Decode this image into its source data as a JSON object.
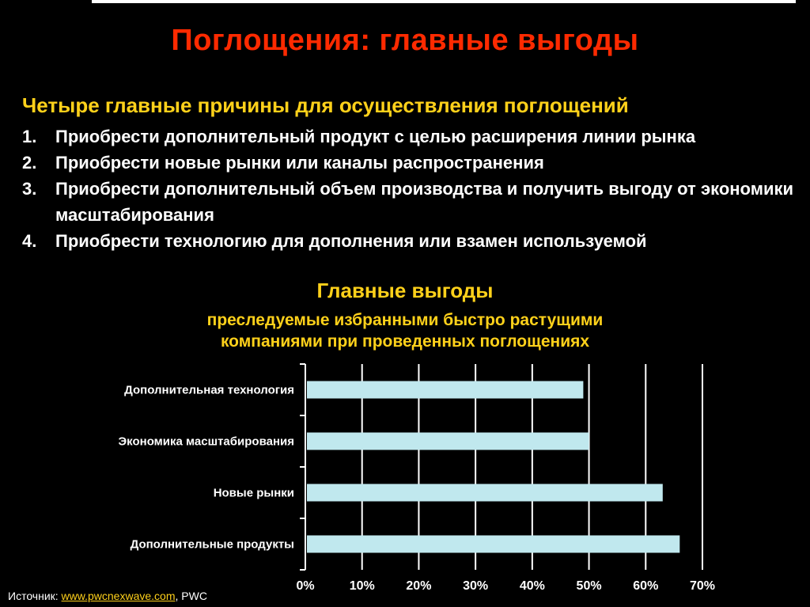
{
  "slide": {
    "title": "Поглощения: главные выгоды",
    "reasons_heading": "Четыре главные причины для осуществления поглощений",
    "reasons": [
      {
        "num": "1.",
        "text": "Приобрести дополнительный продукт с целью расширения линии рынка"
      },
      {
        "num": "2.",
        "text": "Приобрести новые рынки или каналы распространения"
      },
      {
        "num": "3.",
        "text": "Приобрести дополнительный объем производства и получить выгоду от экономики масштабирования"
      },
      {
        "num": "4.",
        "text": "Приобрести технологию для дополнения или взамен используемой"
      }
    ]
  },
  "chart_data": {
    "type": "bar",
    "orientation": "horizontal",
    "title": "Главные выгоды",
    "subtitle": "преследуемые избранными быстро растущими компаниями при проведенных поглощениях",
    "categories": [
      "Дополнительная технология",
      "Экономика масштабирования",
      "Новые рынки",
      "Дополнительные продукты"
    ],
    "values": [
      49,
      50,
      63,
      66
    ],
    "xlim": [
      0,
      70
    ],
    "xticks": [
      0,
      10,
      20,
      30,
      40,
      50,
      60,
      70
    ],
    "xtick_labels": [
      "0%",
      "10%",
      "20%",
      "30%",
      "40%",
      "50%",
      "60%",
      "70%"
    ],
    "grid": true,
    "bar_color": "#c0e8ee"
  },
  "source": {
    "label": "Источник:",
    "link": "www.pwcnexwave.com",
    "suffix": ", PWC"
  }
}
